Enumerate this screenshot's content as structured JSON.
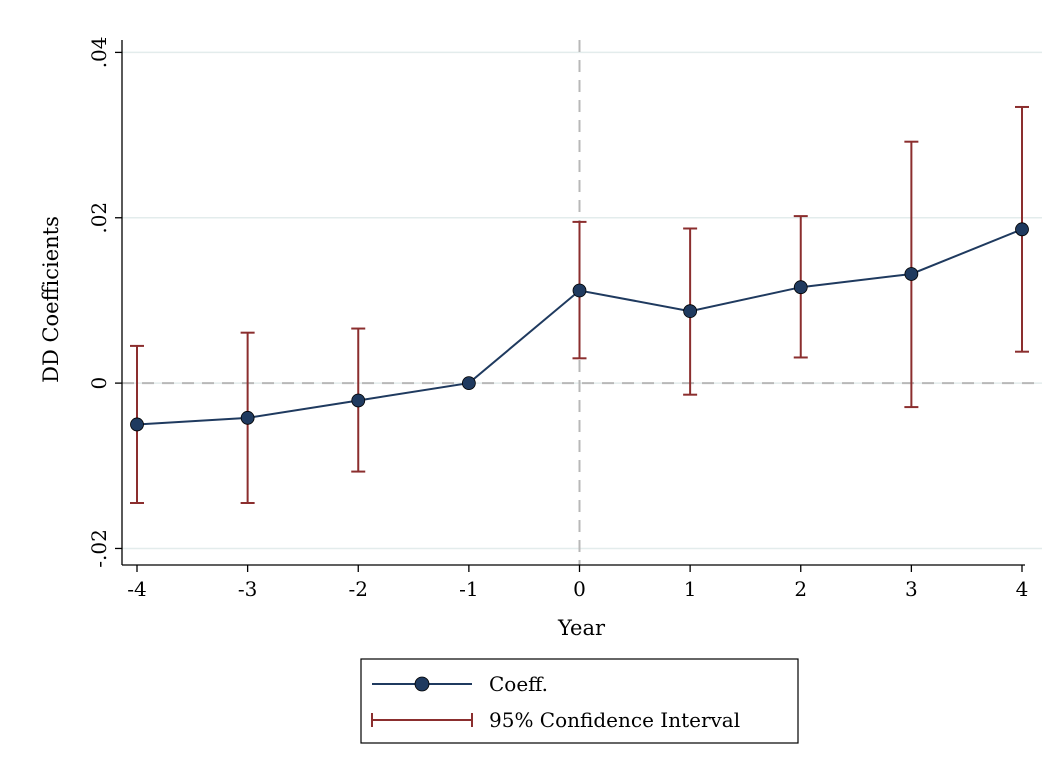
{
  "chart_data": {
    "type": "line",
    "title": "",
    "xlabel": "Year",
    "ylabel": "DD Coefficients",
    "x": [
      -4,
      -3,
      -2,
      -1,
      0,
      1,
      2,
      3,
      4
    ],
    "x_tick_labels": [
      "-4",
      "-3",
      "-2",
      "-1",
      "0",
      "1",
      "2",
      "3",
      "4"
    ],
    "y_ticks": [
      -0.02,
      0,
      0.02,
      0.04
    ],
    "y_tick_labels": [
      "-.02",
      "0",
      ".02",
      ".04"
    ],
    "xlim": [
      -4,
      4
    ],
    "ylim": [
      -0.022,
      0.0415
    ],
    "grid": true,
    "reference_lines": {
      "x": 0,
      "y": 0
    },
    "series": [
      {
        "name": "Coeff.",
        "color": "#1f3a5f",
        "values": [
          -0.005,
          -0.0042,
          -0.0021,
          0.0,
          0.0112,
          0.0087,
          0.0116,
          0.0132,
          0.0186
        ]
      }
    ],
    "confidence_interval": {
      "name": "95% Confidence Interval",
      "color": "#8b2e2e",
      "lower": [
        -0.0145,
        -0.0145,
        -0.0107,
        0.0,
        0.003,
        -0.0014,
        0.0031,
        -0.0029,
        0.0038
      ],
      "upper": [
        0.0045,
        0.0061,
        0.0066,
        0.0,
        0.0195,
        0.0187,
        0.0202,
        0.0292,
        0.0334
      ]
    },
    "legend": {
      "position": "bottom-center",
      "entries": [
        "Coeff.",
        "95% Confidence Interval"
      ]
    }
  }
}
